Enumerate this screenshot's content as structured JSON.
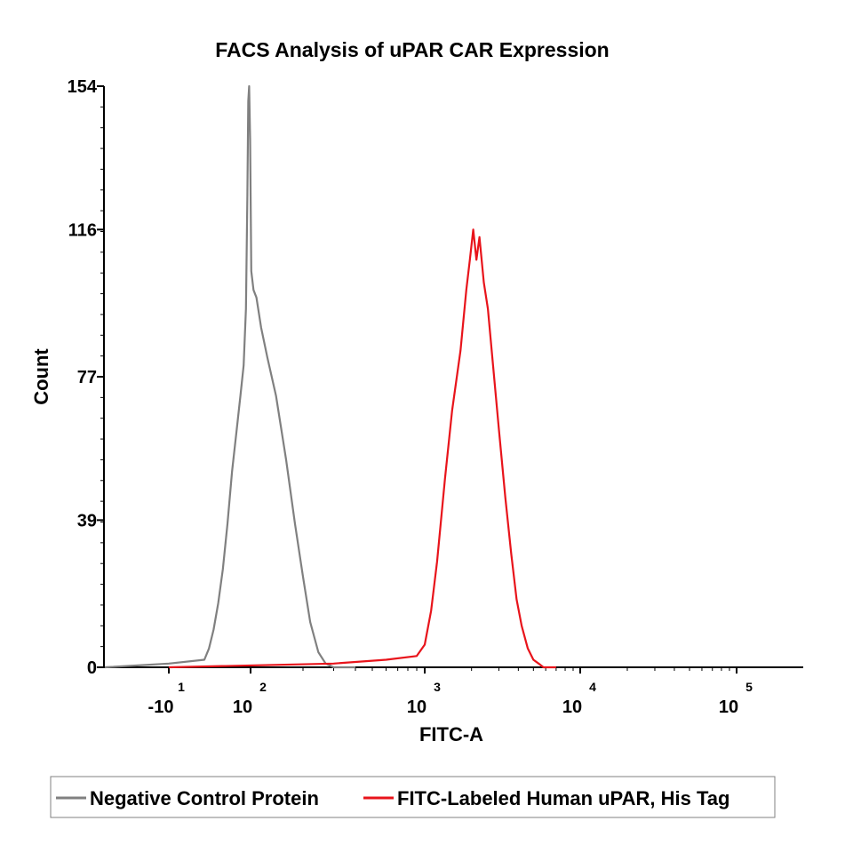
{
  "chart_data": {
    "type": "line",
    "title": "FACS Analysis of uPAR CAR Expression",
    "xlabel": "FITC-A",
    "ylabel": "Count",
    "ylim": [
      0,
      154
    ],
    "y_ticks": [
      {
        "value": 0,
        "label": "0"
      },
      {
        "value": 39,
        "label": "39"
      },
      {
        "value": 77,
        "label": "77"
      },
      {
        "value": 116,
        "label": "116"
      },
      {
        "value": 154,
        "label": "154"
      }
    ],
    "x_scale": "biexponential",
    "x_ticks": [
      {
        "base": "-10",
        "exp": "1"
      },
      {
        "base": "10",
        "exp": "2"
      },
      {
        "base": "10",
        "exp": "3"
      },
      {
        "base": "10",
        "exp": "4"
      },
      {
        "base": "10",
        "exp": "5"
      }
    ],
    "grid": false,
    "legend_position": "bottom",
    "series": [
      {
        "name": "Negative Control Protein",
        "color": "#808080",
        "points": [
          [
            -30,
            0
          ],
          [
            -10,
            1
          ],
          [
            0,
            2
          ],
          [
            10,
            5
          ],
          [
            20,
            10
          ],
          [
            30,
            17
          ],
          [
            40,
            26
          ],
          [
            50,
            38
          ],
          [
            60,
            52
          ],
          [
            70,
            63
          ],
          [
            78,
            72
          ],
          [
            85,
            80
          ],
          [
            90,
            95
          ],
          [
            93,
            125
          ],
          [
            95,
            150
          ],
          [
            97,
            154
          ],
          [
            99,
            140
          ],
          [
            101,
            105
          ],
          [
            104,
            100
          ],
          [
            108,
            98
          ],
          [
            115,
            90
          ],
          [
            125,
            82
          ],
          [
            140,
            72
          ],
          [
            160,
            55
          ],
          [
            180,
            38
          ],
          [
            200,
            24
          ],
          [
            220,
            12
          ],
          [
            245,
            4
          ],
          [
            270,
            1
          ],
          [
            300,
            0
          ],
          [
            400,
            0
          ]
        ]
      },
      {
        "name": "FITC-Labeled Human uPAR, His Tag",
        "color": "#e8141b",
        "points": [
          [
            -10,
            0
          ],
          [
            300,
            1
          ],
          [
            600,
            2
          ],
          [
            900,
            3
          ],
          [
            1000,
            6
          ],
          [
            1100,
            15
          ],
          [
            1200,
            28
          ],
          [
            1350,
            50
          ],
          [
            1500,
            68
          ],
          [
            1700,
            84
          ],
          [
            1850,
            100
          ],
          [
            1950,
            108
          ],
          [
            2050,
            116
          ],
          [
            2150,
            108
          ],
          [
            2250,
            114
          ],
          [
            2400,
            102
          ],
          [
            2550,
            95
          ],
          [
            2750,
            80
          ],
          [
            3000,
            63
          ],
          [
            3300,
            45
          ],
          [
            3600,
            30
          ],
          [
            3900,
            18
          ],
          [
            4200,
            11
          ],
          [
            4600,
            5
          ],
          [
            5000,
            2
          ],
          [
            5400,
            1
          ],
          [
            5800,
            0
          ],
          [
            7000,
            0
          ]
        ]
      }
    ]
  }
}
